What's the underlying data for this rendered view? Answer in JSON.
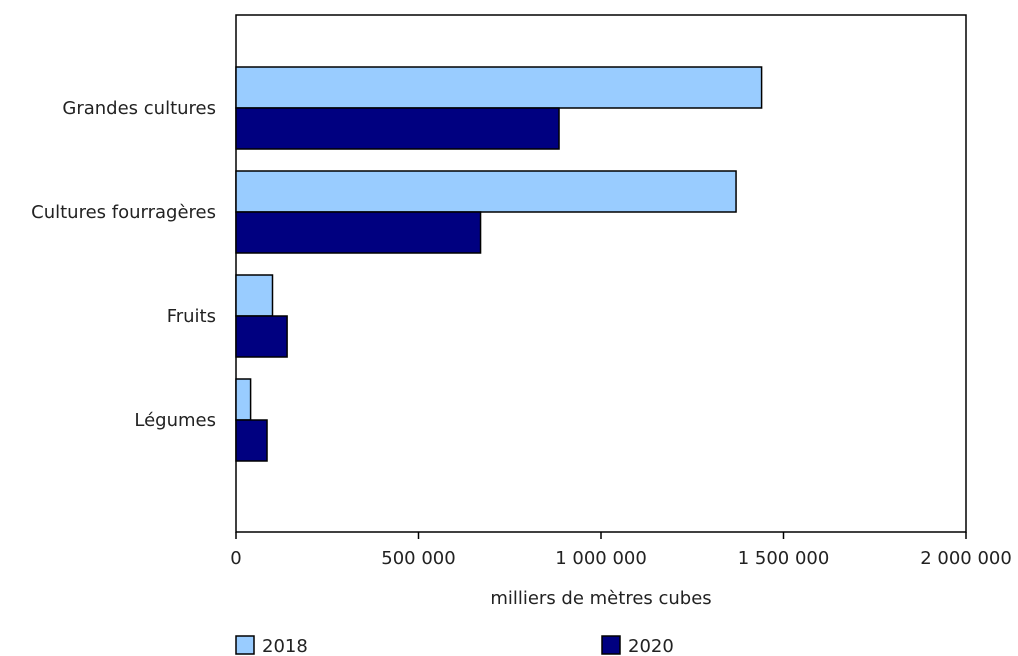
{
  "chart_data": {
    "type": "bar",
    "orientation": "horizontal",
    "categories": [
      "Grandes cultures",
      "Cultures fourragères",
      "Fruits",
      "Légumes"
    ],
    "series": [
      {
        "name": "2018",
        "values": [
          1440000,
          1370000,
          100000,
          40000
        ],
        "color": "#99ccff"
      },
      {
        "name": "2020",
        "values": [
          885000,
          670000,
          140000,
          85000
        ],
        "color": "#000080"
      }
    ],
    "xlabel": "milliers de mètres cubes",
    "ylabel": "",
    "title": "",
    "xlim": [
      0,
      2000000
    ],
    "xticks": [
      0,
      500000,
      1000000,
      1500000,
      2000000
    ],
    "xtick_labels": [
      "0",
      "500 000",
      "1 000 000",
      "1 500 000",
      "2 000 000"
    ],
    "grid": false,
    "legend_position": "bottom"
  }
}
